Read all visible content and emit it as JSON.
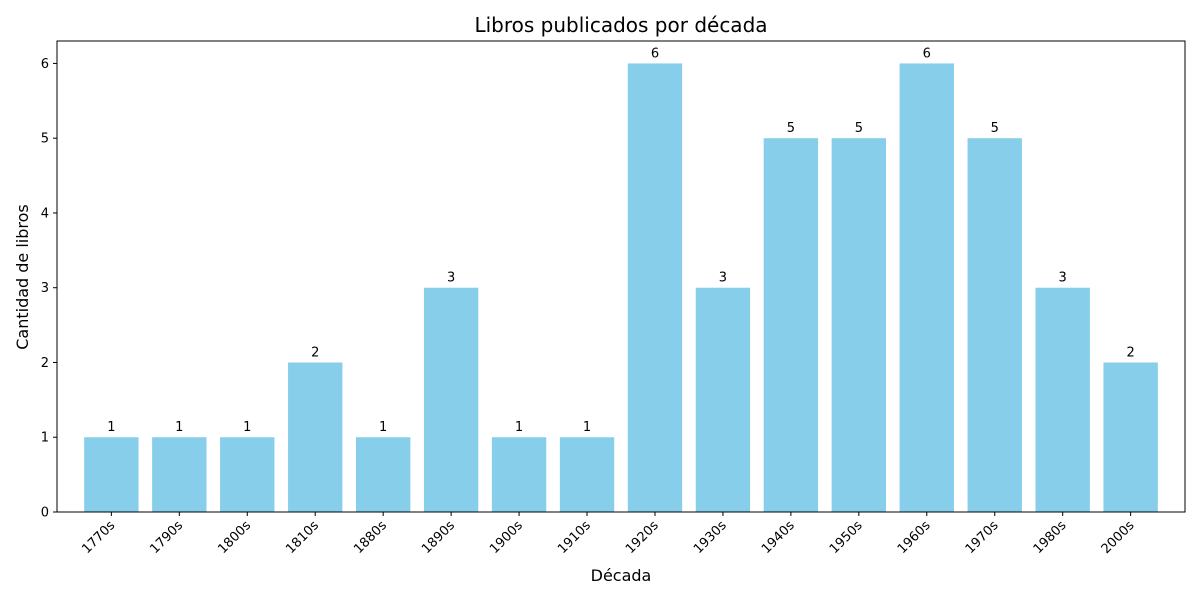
{
  "chart_data": {
    "type": "bar",
    "title": "Libros publicados por década",
    "xlabel": "Década",
    "ylabel": "Cantidad de libros",
    "categories": [
      "1770s",
      "1790s",
      "1800s",
      "1810s",
      "1880s",
      "1890s",
      "1900s",
      "1910s",
      "1920s",
      "1930s",
      "1940s",
      "1950s",
      "1960s",
      "1970s",
      "1980s",
      "2000s"
    ],
    "values": [
      1,
      1,
      1,
      2,
      1,
      3,
      1,
      1,
      6,
      3,
      5,
      5,
      6,
      5,
      3,
      2
    ],
    "ylim": [
      0,
      6.3
    ],
    "yticks": [
      0,
      1,
      2,
      3,
      4,
      5,
      6
    ],
    "bar_color": "#87CEEB",
    "grid": false,
    "legend": "none"
  }
}
